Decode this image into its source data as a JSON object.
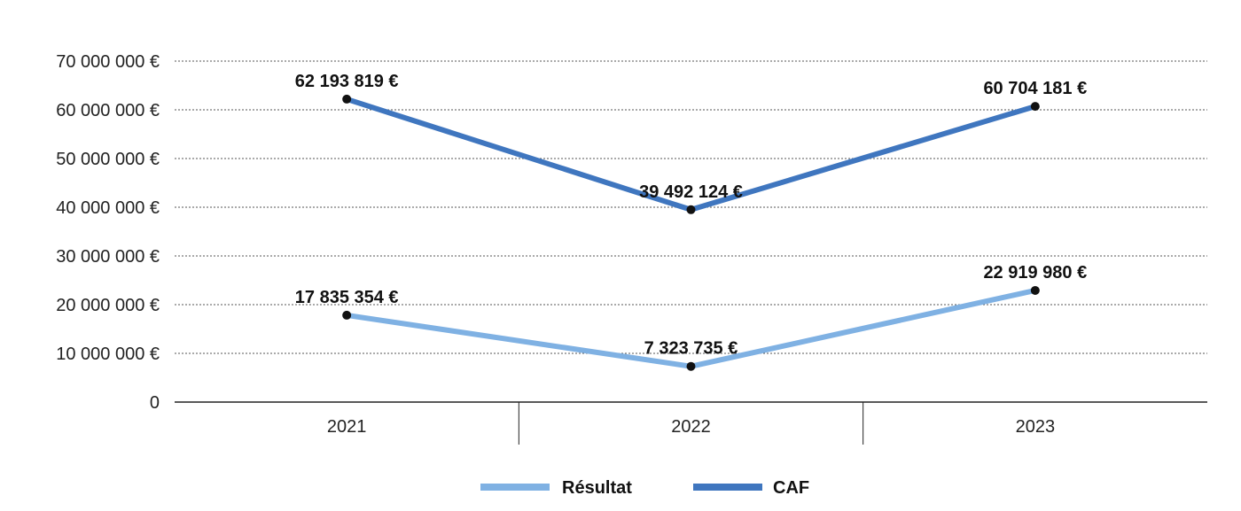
{
  "chart_data": {
    "type": "line",
    "categories": [
      "2021",
      "2022",
      "2023"
    ],
    "series": [
      {
        "name": "Résultat",
        "color": "#7fb1e3",
        "values": [
          17835354,
          7323735,
          22919980
        ],
        "labels": [
          "17 835 354 €",
          "7 323 735 €",
          "22 919 980 €"
        ]
      },
      {
        "name": "CAF",
        "color": "#3f76bf",
        "values": [
          62193819,
          39492124,
          60704181
        ],
        "labels": [
          "62 193 819 €",
          "39 492 124 €",
          "60 704 181 €"
        ]
      }
    ],
    "ylim": [
      0,
      70000000
    ],
    "yticks": [
      {
        "value": 0,
        "label": "0"
      },
      {
        "value": 10000000,
        "label": "10 000 000 €"
      },
      {
        "value": 20000000,
        "label": "20 000 000 €"
      },
      {
        "value": 30000000,
        "label": "30 000 000 €"
      },
      {
        "value": 40000000,
        "label": "40 000 000 €"
      },
      {
        "value": 50000000,
        "label": "50 000 000 €"
      },
      {
        "value": 60000000,
        "label": "60 000 000 €"
      },
      {
        "value": 70000000,
        "label": "70 000 000 €"
      }
    ],
    "grid": true,
    "legend_position": "bottom"
  }
}
